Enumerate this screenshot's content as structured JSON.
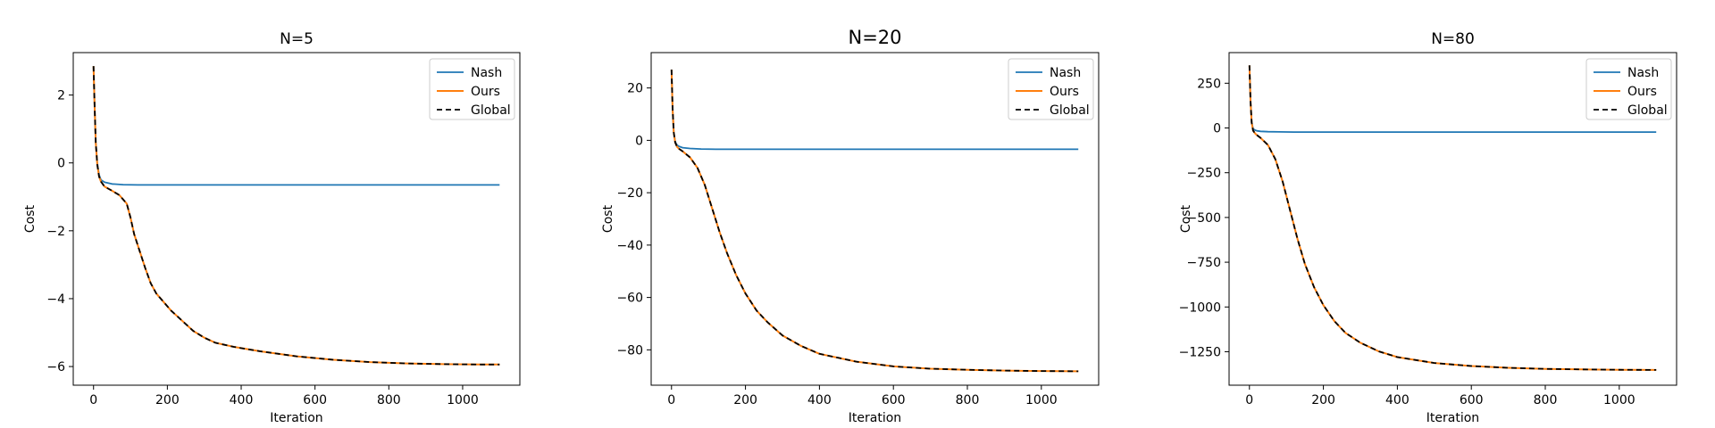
{
  "chart_data": [
    {
      "type": "line",
      "title": "N=5",
      "xlabel": "Iteration",
      "ylabel": "Cost",
      "xlim": [
        -55,
        1155
      ],
      "ylim": [
        -6.55,
        3.25
      ],
      "xticks": [
        0,
        200,
        400,
        600,
        800,
        1000
      ],
      "yticks": [
        -6,
        -4,
        -2,
        0,
        2
      ],
      "legend": "top-right",
      "series": [
        {
          "name": "Nash",
          "color": "#1f77b4",
          "dash": "",
          "width": 1.8,
          "x": [
            0,
            3,
            6,
            10,
            15,
            20,
            30,
            50,
            80,
            120,
            200,
            400,
            700,
            1100
          ],
          "y": [
            2.85,
            1.6,
            0.6,
            0.0,
            -0.35,
            -0.5,
            -0.57,
            -0.62,
            -0.64,
            -0.65,
            -0.65,
            -0.65,
            -0.65,
            -0.65
          ]
        },
        {
          "name": "Ours",
          "color": "#ff7f0e",
          "dash": "",
          "width": 2.0,
          "x": [
            0,
            3,
            6,
            10,
            15,
            20,
            30,
            50,
            70,
            90,
            100,
            110,
            125,
            140,
            155,
            170,
            190,
            210,
            240,
            270,
            300,
            330,
            380,
            450,
            550,
            650,
            750,
            850,
            950,
            1050,
            1100
          ],
          "y": [
            2.85,
            1.6,
            0.6,
            -0.05,
            -0.4,
            -0.55,
            -0.7,
            -0.82,
            -0.95,
            -1.2,
            -1.6,
            -2.1,
            -2.6,
            -3.1,
            -3.55,
            -3.85,
            -4.1,
            -4.35,
            -4.65,
            -4.95,
            -5.15,
            -5.3,
            -5.42,
            -5.55,
            -5.7,
            -5.8,
            -5.87,
            -5.91,
            -5.93,
            -5.94,
            -5.94
          ]
        },
        {
          "name": "Global",
          "color": "#000000",
          "dash": "6,4",
          "width": 1.8,
          "x": [
            0,
            3,
            6,
            10,
            15,
            20,
            30,
            50,
            70,
            90,
            100,
            110,
            125,
            140,
            155,
            170,
            190,
            210,
            240,
            270,
            300,
            330,
            380,
            450,
            550,
            650,
            750,
            850,
            950,
            1050,
            1100
          ],
          "y": [
            2.85,
            1.6,
            0.6,
            -0.05,
            -0.4,
            -0.55,
            -0.7,
            -0.82,
            -0.95,
            -1.2,
            -1.6,
            -2.1,
            -2.6,
            -3.1,
            -3.55,
            -3.85,
            -4.1,
            -4.35,
            -4.65,
            -4.95,
            -5.15,
            -5.3,
            -5.42,
            -5.55,
            -5.7,
            -5.8,
            -5.87,
            -5.91,
            -5.93,
            -5.94,
            -5.94
          ]
        }
      ]
    },
    {
      "type": "line",
      "title": "N=20",
      "xlabel": "Iteration",
      "ylabel": "Cost",
      "xlim": [
        -55,
        1155
      ],
      "ylim": [
        -93.5,
        33.5
      ],
      "xticks": [
        0,
        200,
        400,
        600,
        800,
        1000
      ],
      "yticks": [
        -80,
        -60,
        -40,
        -20,
        0,
        20
      ],
      "legend": "top-right",
      "series": [
        {
          "name": "Nash",
          "color": "#1f77b4",
          "dash": "",
          "width": 1.8,
          "x": [
            0,
            3,
            6,
            10,
            15,
            20,
            30,
            50,
            80,
            120,
            200,
            400,
            700,
            1100
          ],
          "y": [
            27,
            12,
            3,
            -0.5,
            -1.8,
            -2.3,
            -2.8,
            -3.1,
            -3.3,
            -3.4,
            -3.4,
            -3.4,
            -3.4,
            -3.4
          ]
        },
        {
          "name": "Ours",
          "color": "#ff7f0e",
          "dash": "",
          "width": 2.0,
          "x": [
            0,
            3,
            6,
            10,
            15,
            20,
            30,
            50,
            70,
            90,
            110,
            130,
            150,
            175,
            200,
            230,
            260,
            300,
            350,
            400,
            500,
            600,
            700,
            800,
            900,
            1000,
            1100
          ],
          "y": [
            27,
            12,
            3,
            -0.8,
            -2.5,
            -3.2,
            -4.2,
            -6.5,
            -10.5,
            -17,
            -26,
            -35,
            -43,
            -51.5,
            -58.5,
            -65,
            -69.5,
            -74.5,
            -78.5,
            -81.5,
            -84.5,
            -86.3,
            -87.2,
            -87.6,
            -87.9,
            -88.1,
            -88.2
          ]
        },
        {
          "name": "Global",
          "color": "#000000",
          "dash": "6,4",
          "width": 1.8,
          "x": [
            0,
            3,
            6,
            10,
            15,
            20,
            30,
            50,
            70,
            90,
            110,
            130,
            150,
            175,
            200,
            230,
            260,
            300,
            350,
            400,
            500,
            600,
            700,
            800,
            900,
            1000,
            1100
          ],
          "y": [
            27,
            12,
            3,
            -0.8,
            -2.5,
            -3.2,
            -4.2,
            -6.5,
            -10.5,
            -17,
            -26,
            -35,
            -43,
            -51.5,
            -58.5,
            -65,
            -69.5,
            -74.5,
            -78.5,
            -81.5,
            -84.5,
            -86.3,
            -87.2,
            -87.6,
            -87.9,
            -88.1,
            -88.2
          ]
        }
      ]
    },
    {
      "type": "line",
      "title": "N=80",
      "xlabel": "Iteration",
      "ylabel": "Cost",
      "xlim": [
        -55,
        1155
      ],
      "ylim": [
        -1437,
        421
      ],
      "xticks": [
        0,
        200,
        400,
        600,
        800,
        1000
      ],
      "yticks": [
        -1250,
        -1000,
        -750,
        -500,
        -250,
        0,
        250
      ],
      "legend": "top-right",
      "series": [
        {
          "name": "Nash",
          "color": "#1f77b4",
          "dash": "",
          "width": 1.8,
          "x": [
            0,
            3,
            6,
            10,
            15,
            20,
            30,
            50,
            80,
            120,
            200,
            400,
            700,
            1100
          ],
          "y": [
            350,
            150,
            30,
            -5,
            -12,
            -16,
            -19,
            -21,
            -22,
            -23,
            -23,
            -23,
            -23,
            -23
          ]
        },
        {
          "name": "Ours",
          "color": "#ff7f0e",
          "dash": "",
          "width": 2.0,
          "x": [
            0,
            3,
            6,
            10,
            15,
            20,
            30,
            50,
            70,
            90,
            110,
            130,
            150,
            175,
            200,
            230,
            260,
            300,
            350,
            400,
            500,
            600,
            700,
            800,
            900,
            1000,
            1100
          ],
          "y": [
            350,
            150,
            30,
            -15,
            -30,
            -40,
            -55,
            -95,
            -175,
            -300,
            -460,
            -620,
            -760,
            -890,
            -990,
            -1080,
            -1145,
            -1200,
            -1248,
            -1280,
            -1313,
            -1330,
            -1340,
            -1346,
            -1349,
            -1351,
            -1352
          ]
        },
        {
          "name": "Global",
          "color": "#000000",
          "dash": "6,4",
          "width": 1.8,
          "x": [
            0,
            3,
            6,
            10,
            15,
            20,
            30,
            50,
            70,
            90,
            110,
            130,
            150,
            175,
            200,
            230,
            260,
            300,
            350,
            400,
            500,
            600,
            700,
            800,
            900,
            1000,
            1100
          ],
          "y": [
            350,
            150,
            30,
            -15,
            -30,
            -40,
            -55,
            -95,
            -175,
            -300,
            -460,
            -620,
            -760,
            -890,
            -990,
            -1080,
            -1145,
            -1200,
            -1248,
            -1280,
            -1313,
            -1330,
            -1340,
            -1346,
            -1349,
            -1351,
            -1352
          ]
        }
      ]
    }
  ]
}
